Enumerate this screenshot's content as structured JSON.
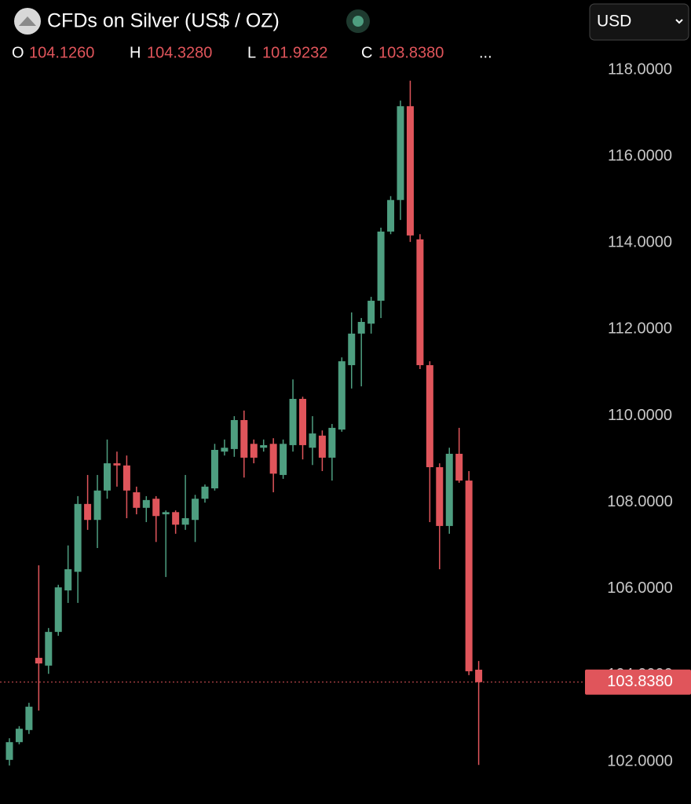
{
  "chart_data": {
    "type": "candlestick",
    "title": "CFDs on Silver (US$ / OZ)",
    "currency": "USD",
    "ohlc_keys": [
      "O",
      "H",
      "L",
      "C"
    ],
    "last_candle_labels": [
      "104.1260",
      "104.3280",
      "101.9232",
      "103.8380"
    ],
    "more": "...",
    "up_color": "#4e9e80",
    "down_color": "#e0555b",
    "open": [
      102.04,
      102.45,
      102.73,
      104.4,
      104.22,
      105.0,
      105.96,
      106.39,
      107.96,
      107.59,
      108.27,
      108.9,
      108.85,
      108.23,
      107.87,
      108.08,
      107.72,
      107.77,
      107.48,
      107.59,
      108.08,
      108.32,
      109.17,
      109.23,
      109.9,
      109.35,
      109.26,
      109.35,
      108.63,
      109.32,
      110.39,
      109.26,
      109.54,
      109.03,
      109.68,
      111.17,
      111.9,
      112.13,
      112.66,
      114.26,
      114.99,
      117.16,
      114.08,
      111.17,
      108.81,
      107.45,
      109.12,
      108.5,
      104.126
    ],
    "high": [
      102.54,
      102.82,
      103.36,
      106.54,
      105.09,
      106.09,
      107.0,
      108.14,
      108.63,
      108.63,
      109.45,
      109.17,
      109.08,
      108.36,
      108.14,
      108.14,
      107.81,
      107.81,
      108.63,
      108.17,
      108.41,
      109.35,
      109.45,
      109.99,
      110.12,
      109.45,
      109.45,
      109.48,
      109.45,
      110.84,
      110.44,
      109.99,
      109.66,
      109.81,
      111.35,
      112.39,
      112.26,
      112.75,
      114.35,
      115.08,
      117.29,
      117.75,
      114.2,
      111.26,
      108.9,
      109.26,
      109.72,
      108.72,
      104.328
    ],
    "low": [
      101.91,
      102.4,
      102.64,
      103.18,
      104.03,
      104.91,
      105.67,
      105.67,
      107.36,
      106.94,
      108.08,
      108.36,
      107.63,
      107.72,
      107.54,
      107.08,
      106.27,
      107.27,
      107.36,
      107.08,
      107.99,
      108.27,
      109.08,
      109.05,
      108.57,
      108.9,
      109.17,
      108.23,
      108.54,
      109.17,
      108.99,
      108.86,
      108.72,
      108.5,
      109.63,
      110.63,
      110.68,
      111.9,
      112.26,
      114.2,
      114.53,
      114.02,
      111.08,
      107.54,
      106.45,
      107.27,
      108.45,
      104.0,
      101.9232
    ],
    "close": [
      102.45,
      102.76,
      103.27,
      104.27,
      105.0,
      106.03,
      106.45,
      107.96,
      107.59,
      108.27,
      108.9,
      108.85,
      108.27,
      107.87,
      108.05,
      107.68,
      107.77,
      107.48,
      107.63,
      108.08,
      108.36,
      109.21,
      109.26,
      109.9,
      109.03,
      109.03,
      109.32,
      108.66,
      109.35,
      110.39,
      109.32,
      109.59,
      109.03,
      109.72,
      111.26,
      111.9,
      112.17,
      112.66,
      114.26,
      114.99,
      117.16,
      114.17,
      111.17,
      108.81,
      107.45,
      109.12,
      108.5,
      104.09,
      103.838
    ],
    "last_price": {
      "value": 103.838,
      "label": "103.8380"
    },
    "ylim": [
      101.4,
      118.6
    ],
    "yticks": [
      {
        "value": 102,
        "label": "102.0000"
      },
      {
        "value": 104,
        "label": "104.0000"
      },
      {
        "value": 106,
        "label": "106.0000"
      },
      {
        "value": 108,
        "label": "108.0000"
      },
      {
        "value": 110,
        "label": "110.0000"
      },
      {
        "value": 112,
        "label": "112.0000"
      },
      {
        "value": 114,
        "label": "114.0000"
      },
      {
        "value": 116,
        "label": "116.0000"
      },
      {
        "value": 118,
        "label": "118.0000"
      }
    ]
  }
}
